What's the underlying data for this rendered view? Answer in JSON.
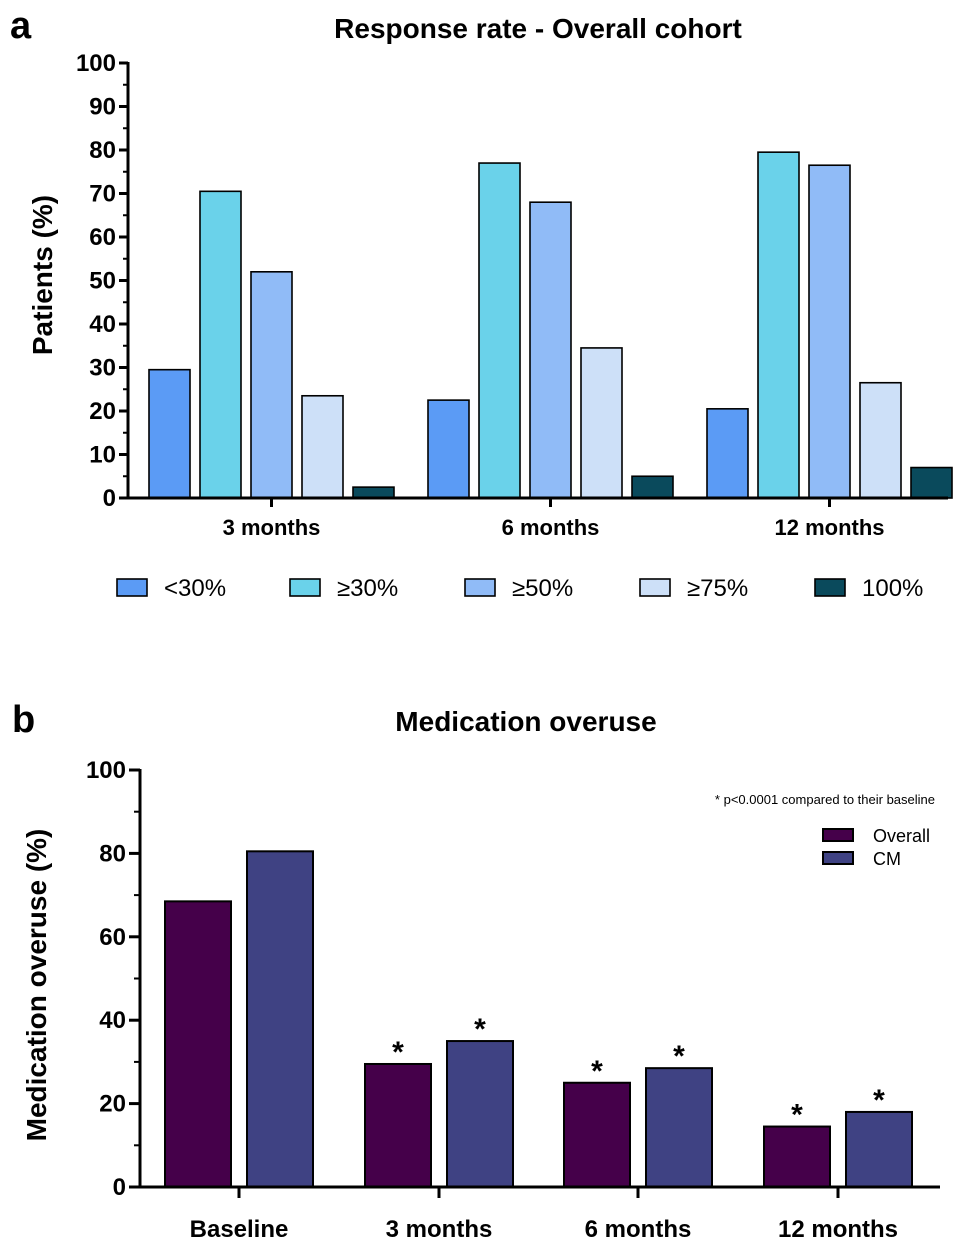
{
  "chart_data": [
    {
      "panel": "a",
      "type": "bar",
      "title": "Response rate - Overall cohort",
      "xlabel": "",
      "ylabel": "Patients (%)",
      "ylim": [
        0,
        100
      ],
      "yticks": [
        "0",
        "10",
        "20",
        "30",
        "40",
        "50",
        "60",
        "70",
        "80",
        "90",
        "100"
      ],
      "categories": [
        "3 months",
        "6 months",
        "12 months"
      ],
      "legend_position": "bottom",
      "series": [
        {
          "name": "<30%",
          "color": "#5b9bf5",
          "values": [
            29.5,
            22.5,
            20.5
          ]
        },
        {
          "name": "≥30%",
          "color": "#6ad2ea",
          "values": [
            70.5,
            77.0,
            79.5
          ]
        },
        {
          "name": "≥50%",
          "color": "#90bbf7",
          "values": [
            52.0,
            68.0,
            76.5
          ]
        },
        {
          "name": "≥75%",
          "color": "#cde0f8",
          "values": [
            23.5,
            34.5,
            26.5
          ]
        },
        {
          "name": "100%",
          "color": "#0a4a5c",
          "values": [
            2.5,
            5.0,
            7.0
          ]
        }
      ]
    },
    {
      "panel": "b",
      "type": "bar",
      "title": "Medication overuse",
      "xlabel": "",
      "ylabel": "Medication overuse (%)",
      "ylim": [
        0,
        100
      ],
      "yticks": [
        "0",
        "20",
        "40",
        "60",
        "80",
        "100"
      ],
      "categories": [
        "Baseline",
        "3 months",
        "6 months",
        "12 months"
      ],
      "legend_position": "top-right",
      "annotation": "* p<0.0001 compared to their baseline",
      "significance_marker": "*",
      "series": [
        {
          "name": "Overall",
          "color": "#45004a",
          "values": [
            68.5,
            29.5,
            25.0,
            14.5
          ],
          "significant": [
            false,
            true,
            true,
            true
          ]
        },
        {
          "name": "CM",
          "color": "#3f4283",
          "values": [
            80.5,
            35.0,
            28.5,
            18.0
          ],
          "significant": [
            false,
            true,
            true,
            true
          ]
        }
      ]
    }
  ]
}
